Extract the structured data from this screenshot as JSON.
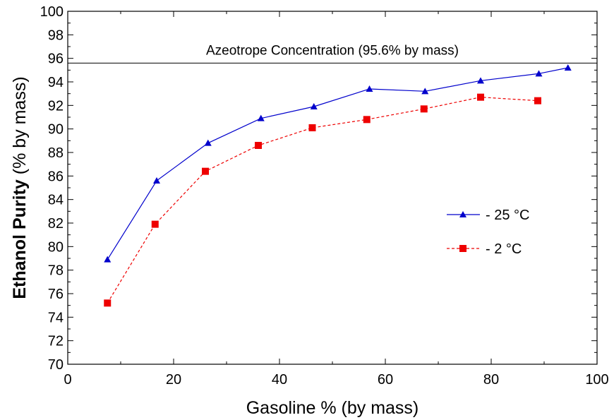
{
  "chart_data": {
    "type": "line",
    "xlabel": "Gasoline % (by mass)",
    "ylabel_bold": "Ethanol Purity",
    "ylabel_rest": " (% by mass)",
    "xlim": [
      0,
      100
    ],
    "ylim": [
      70,
      100
    ],
    "x_ticks": [
      0,
      20,
      40,
      60,
      80,
      100
    ],
    "y_ticks": [
      70,
      72,
      74,
      76,
      78,
      80,
      82,
      84,
      86,
      88,
      90,
      92,
      94,
      96,
      98,
      100
    ],
    "grid": false,
    "legend_position": "center-right",
    "reference_line": {
      "y": 95.6,
      "label": "Azeotrope Concentration (95.6% by mass)"
    },
    "series": [
      {
        "name": "- 25 °C",
        "color": "#0000CC",
        "marker": "triangle",
        "line_style": "solid",
        "x": [
          7.5,
          16.8,
          26.5,
          36.5,
          46.5,
          57,
          67.5,
          78,
          89,
          94.5
        ],
        "y": [
          78.9,
          85.6,
          88.8,
          90.9,
          91.9,
          93.4,
          93.2,
          94.1,
          94.7,
          95.2
        ]
      },
      {
        "name": "- 2 °C",
        "color": "#EE0000",
        "marker": "square",
        "line_style": "dashed",
        "x": [
          7.5,
          16.5,
          26,
          36,
          46.2,
          56.5,
          67.3,
          78,
          88.8
        ],
        "y": [
          75.2,
          81.9,
          86.4,
          88.6,
          90.1,
          90.8,
          91.7,
          92.7,
          92.4
        ]
      }
    ]
  }
}
